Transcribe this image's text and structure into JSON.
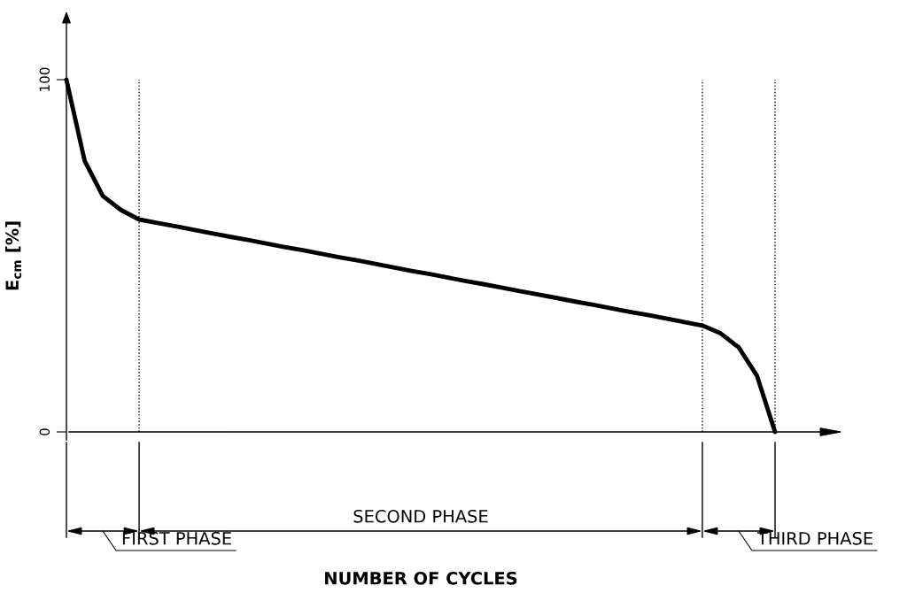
{
  "chart_data": {
    "type": "line",
    "ylabel": "E$_{cm}$ [%]",
    "categories": [
      null,
      null,
      null,
      null,
      null,
      null,
      null,
      null,
      null,
      null,
      null,
      null,
      null,
      null,
      null,
      null,
      null,
      null,
      null,
      null,
      null,
      null,
      null,
      null,
      null,
      null,
      null,
      null,
      null,
      null,
      null,
      null,
      null,
      null,
      null,
      null,
      null,
      null,
      null,
      null
    ],
    "series": [
      {
        "color": "#000000",
        "values": [
          100,
          77,
          67,
          63,
          60.3,
          59.3,
          58.4,
          57.4,
          56.4,
          55.4,
          54.5,
          53.5,
          52.5,
          51.6,
          50.6,
          49.6,
          48.7,
          47.7,
          46.7,
          45.7,
          44.8,
          43.8,
          42.8,
          41.9,
          40.9,
          39.9,
          39.0,
          38.0,
          37.0,
          36.1,
          35.1,
          34.1,
          33.2,
          32.2,
          31.2,
          30.2,
          28,
          24,
          16,
          0
        ]
      }
    ],
    "ylim": [
      0,
      100
    ],
    "yticks": [
      0,
      100
    ],
    "grid": "x",
    "legend": false,
    "marker": "none",
    "line_style": "solid",
    "annotations": [
      "FIRST PHASE",
      "SECOND PHASE",
      "THIRD PHASE",
      "NUMBER OF CYCLES"
    ]
  }
}
